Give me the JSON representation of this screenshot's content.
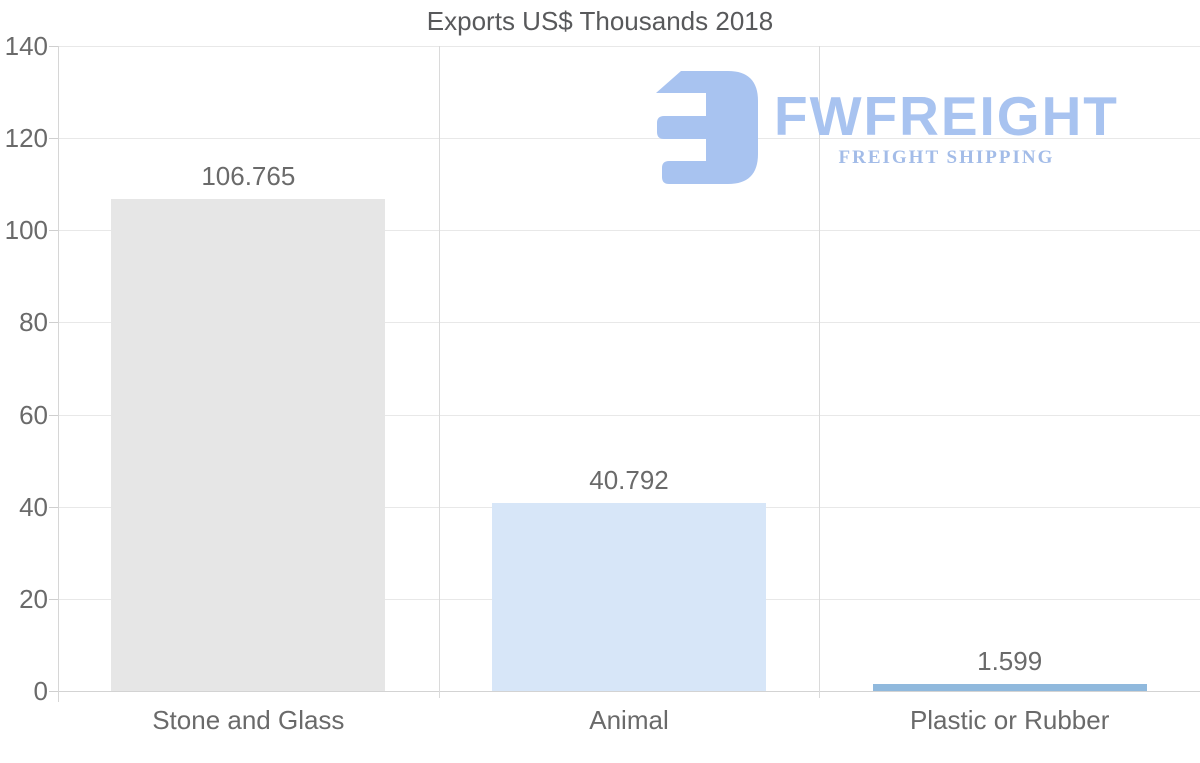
{
  "chart_data": {
    "type": "bar",
    "title": "Exports US$ Thousands 2018",
    "categories": [
      "Stone and Glass",
      "Animal",
      "Plastic or Rubber"
    ],
    "values": [
      106.765,
      40.792,
      1.599
    ],
    "value_labels": [
      "106.765",
      "40.792",
      "1.599"
    ],
    "bar_colors": [
      "#e6e6e6",
      "#d7e6f8",
      "#90b9dd"
    ],
    "xlabel": "",
    "ylabel": "",
    "ylim": [
      0,
      140
    ],
    "yticks": [
      0,
      20,
      40,
      60,
      80,
      100,
      120,
      140
    ],
    "grid": "horizontal gridlines at each y tick + vertical category separator lines",
    "legend": "none"
  },
  "watermark": {
    "wordmark": "FWFREIGHT",
    "subtitle": "FREIGHT SHIPPING",
    "color": "#a8c3f0"
  },
  "colors": {
    "background": "#ffffff",
    "title_text": "#58595b",
    "axis_text": "#6a6a6a",
    "gridline": "#e8e8e8",
    "baseline": "#d3d3d3",
    "axis_line": "#d6d6d6",
    "separator_line": "#dadada"
  }
}
